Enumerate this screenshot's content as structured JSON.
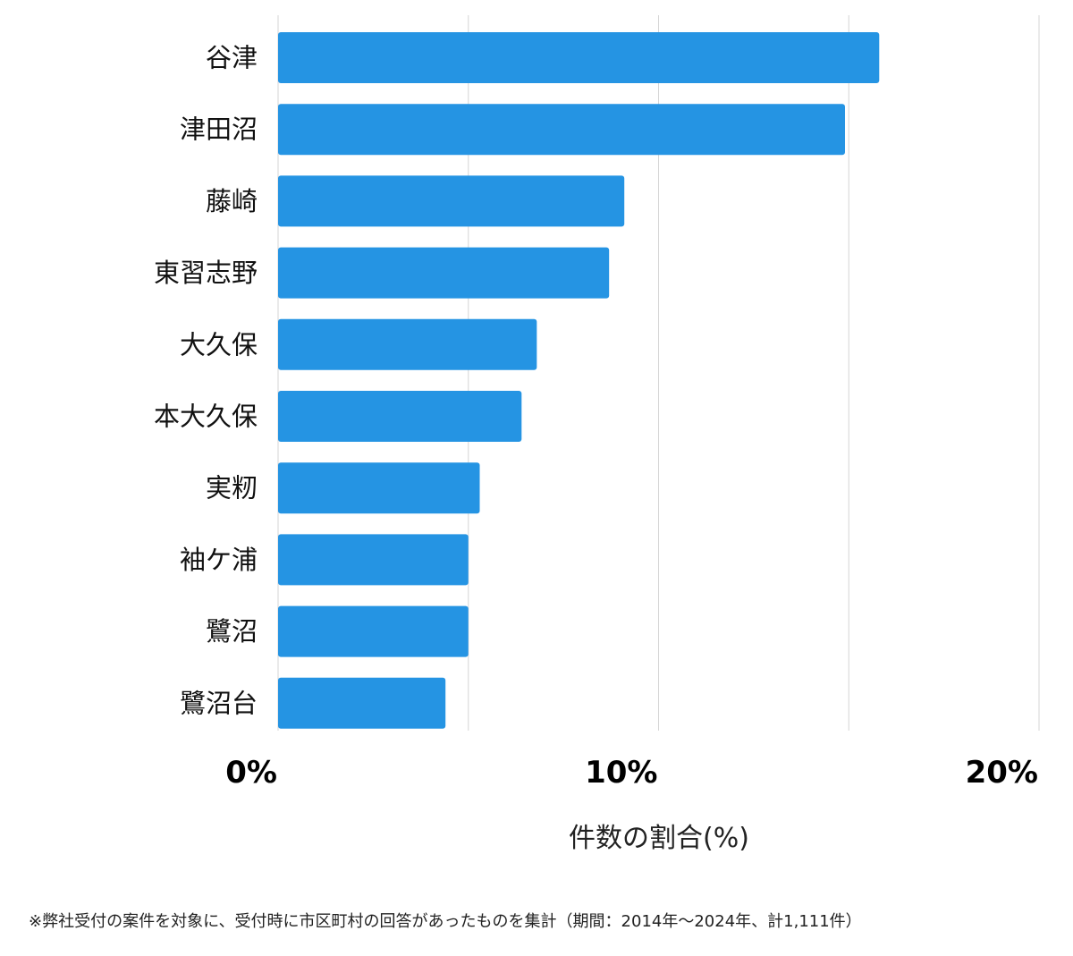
{
  "chart_data": {
    "type": "bar",
    "orientation": "horizontal",
    "categories": [
      "谷津",
      "津田沼",
      "藤崎",
      "東習志野",
      "大久保",
      "本大久保",
      "実籾",
      "袖ケ浦",
      "鷺沼",
      "鷺沼台"
    ],
    "values": [
      15.8,
      14.9,
      9.1,
      8.7,
      6.8,
      6.4,
      5.3,
      5.0,
      5.0,
      4.4
    ],
    "xlabel": "件数の割合(%)",
    "ylabel": "",
    "xlim": [
      0,
      20
    ],
    "ticks": [
      {
        "value": 0,
        "label": "0%"
      },
      {
        "value": 10,
        "label": "10%"
      },
      {
        "value": 20,
        "label": "20%"
      }
    ],
    "gridlines": [
      0,
      5,
      10,
      15,
      20
    ],
    "grid": true,
    "bar_color": "#2594e3"
  },
  "footnote": "※弊社受付の案件を対象に、受付時に市区町村の回答があったものを集計（期間：2014年～2024年、計1,111件）"
}
